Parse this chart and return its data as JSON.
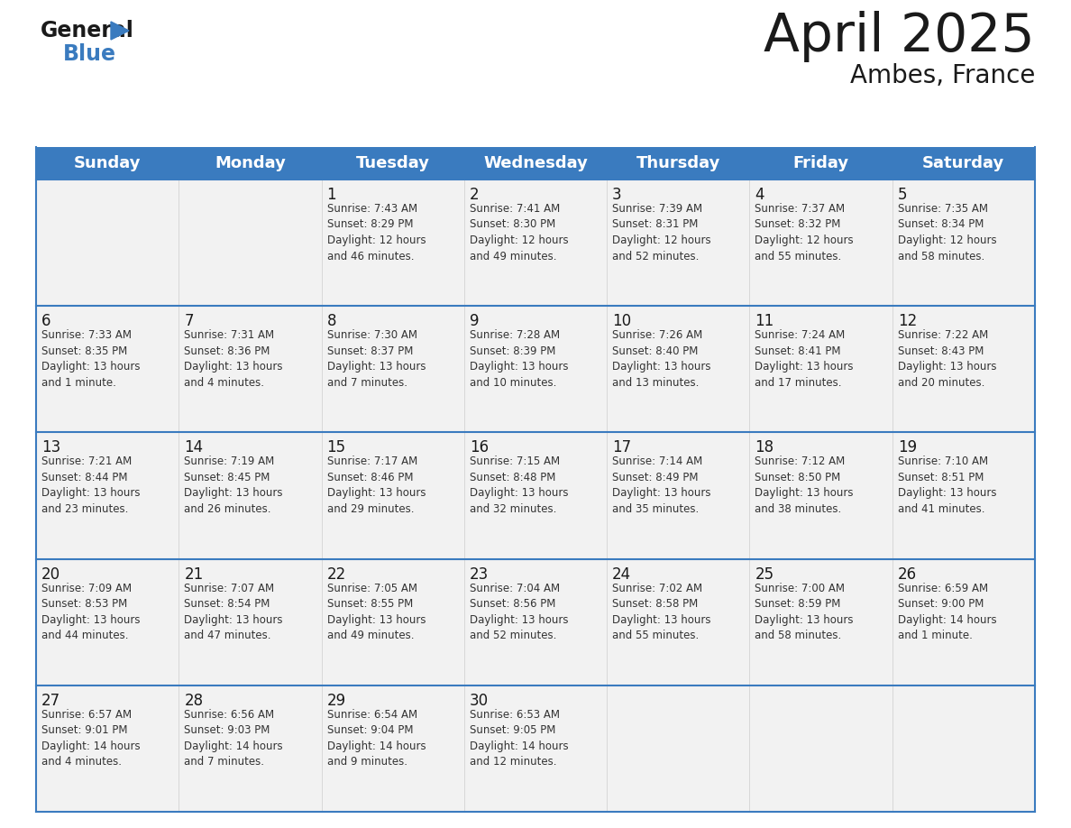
{
  "title": "April 2025",
  "subtitle": "Ambes, France",
  "header_bg_color": "#3a7bbf",
  "header_text_color": "#ffffff",
  "cell_bg_color": "#f2f2f2",
  "border_color": "#3a7bbf",
  "cell_border_color": "#cccccc",
  "day_names": [
    "Sunday",
    "Monday",
    "Tuesday",
    "Wednesday",
    "Thursday",
    "Friday",
    "Saturday"
  ],
  "title_color": "#1a1a1a",
  "subtitle_color": "#1a1a1a",
  "day_number_color": "#1a1a1a",
  "cell_text_color": "#333333",
  "logo_color_general": "#1a1a1a",
  "logo_color_blue": "#3a7bbf",
  "weeks": [
    [
      {
        "day": "",
        "text": ""
      },
      {
        "day": "",
        "text": ""
      },
      {
        "day": "1",
        "text": "Sunrise: 7:43 AM\nSunset: 8:29 PM\nDaylight: 12 hours\nand 46 minutes."
      },
      {
        "day": "2",
        "text": "Sunrise: 7:41 AM\nSunset: 8:30 PM\nDaylight: 12 hours\nand 49 minutes."
      },
      {
        "day": "3",
        "text": "Sunrise: 7:39 AM\nSunset: 8:31 PM\nDaylight: 12 hours\nand 52 minutes."
      },
      {
        "day": "4",
        "text": "Sunrise: 7:37 AM\nSunset: 8:32 PM\nDaylight: 12 hours\nand 55 minutes."
      },
      {
        "day": "5",
        "text": "Sunrise: 7:35 AM\nSunset: 8:34 PM\nDaylight: 12 hours\nand 58 minutes."
      }
    ],
    [
      {
        "day": "6",
        "text": "Sunrise: 7:33 AM\nSunset: 8:35 PM\nDaylight: 13 hours\nand 1 minute."
      },
      {
        "day": "7",
        "text": "Sunrise: 7:31 AM\nSunset: 8:36 PM\nDaylight: 13 hours\nand 4 minutes."
      },
      {
        "day": "8",
        "text": "Sunrise: 7:30 AM\nSunset: 8:37 PM\nDaylight: 13 hours\nand 7 minutes."
      },
      {
        "day": "9",
        "text": "Sunrise: 7:28 AM\nSunset: 8:39 PM\nDaylight: 13 hours\nand 10 minutes."
      },
      {
        "day": "10",
        "text": "Sunrise: 7:26 AM\nSunset: 8:40 PM\nDaylight: 13 hours\nand 13 minutes."
      },
      {
        "day": "11",
        "text": "Sunrise: 7:24 AM\nSunset: 8:41 PM\nDaylight: 13 hours\nand 17 minutes."
      },
      {
        "day": "12",
        "text": "Sunrise: 7:22 AM\nSunset: 8:43 PM\nDaylight: 13 hours\nand 20 minutes."
      }
    ],
    [
      {
        "day": "13",
        "text": "Sunrise: 7:21 AM\nSunset: 8:44 PM\nDaylight: 13 hours\nand 23 minutes."
      },
      {
        "day": "14",
        "text": "Sunrise: 7:19 AM\nSunset: 8:45 PM\nDaylight: 13 hours\nand 26 minutes."
      },
      {
        "day": "15",
        "text": "Sunrise: 7:17 AM\nSunset: 8:46 PM\nDaylight: 13 hours\nand 29 minutes."
      },
      {
        "day": "16",
        "text": "Sunrise: 7:15 AM\nSunset: 8:48 PM\nDaylight: 13 hours\nand 32 minutes."
      },
      {
        "day": "17",
        "text": "Sunrise: 7:14 AM\nSunset: 8:49 PM\nDaylight: 13 hours\nand 35 minutes."
      },
      {
        "day": "18",
        "text": "Sunrise: 7:12 AM\nSunset: 8:50 PM\nDaylight: 13 hours\nand 38 minutes."
      },
      {
        "day": "19",
        "text": "Sunrise: 7:10 AM\nSunset: 8:51 PM\nDaylight: 13 hours\nand 41 minutes."
      }
    ],
    [
      {
        "day": "20",
        "text": "Sunrise: 7:09 AM\nSunset: 8:53 PM\nDaylight: 13 hours\nand 44 minutes."
      },
      {
        "day": "21",
        "text": "Sunrise: 7:07 AM\nSunset: 8:54 PM\nDaylight: 13 hours\nand 47 minutes."
      },
      {
        "day": "22",
        "text": "Sunrise: 7:05 AM\nSunset: 8:55 PM\nDaylight: 13 hours\nand 49 minutes."
      },
      {
        "day": "23",
        "text": "Sunrise: 7:04 AM\nSunset: 8:56 PM\nDaylight: 13 hours\nand 52 minutes."
      },
      {
        "day": "24",
        "text": "Sunrise: 7:02 AM\nSunset: 8:58 PM\nDaylight: 13 hours\nand 55 minutes."
      },
      {
        "day": "25",
        "text": "Sunrise: 7:00 AM\nSunset: 8:59 PM\nDaylight: 13 hours\nand 58 minutes."
      },
      {
        "day": "26",
        "text": "Sunrise: 6:59 AM\nSunset: 9:00 PM\nDaylight: 14 hours\nand 1 minute."
      }
    ],
    [
      {
        "day": "27",
        "text": "Sunrise: 6:57 AM\nSunset: 9:01 PM\nDaylight: 14 hours\nand 4 minutes."
      },
      {
        "day": "28",
        "text": "Sunrise: 6:56 AM\nSunset: 9:03 PM\nDaylight: 14 hours\nand 7 minutes."
      },
      {
        "day": "29",
        "text": "Sunrise: 6:54 AM\nSunset: 9:04 PM\nDaylight: 14 hours\nand 9 minutes."
      },
      {
        "day": "30",
        "text": "Sunrise: 6:53 AM\nSunset: 9:05 PM\nDaylight: 14 hours\nand 12 minutes."
      },
      {
        "day": "",
        "text": ""
      },
      {
        "day": "",
        "text": ""
      },
      {
        "day": "",
        "text": ""
      }
    ]
  ],
  "fig_width": 11.88,
  "fig_height": 9.18,
  "dpi": 100
}
